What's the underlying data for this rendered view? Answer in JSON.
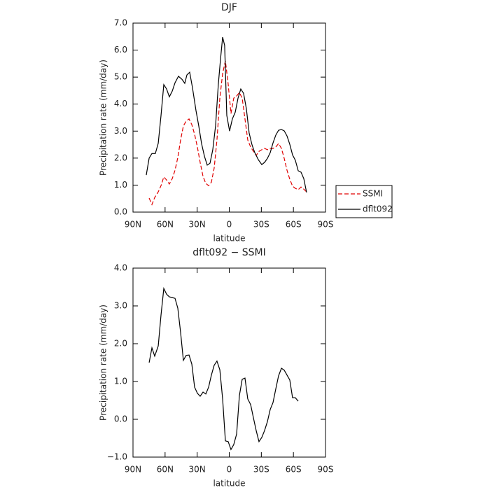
{
  "chart_data": [
    {
      "type": "line",
      "title": "DJF",
      "x_label": "latitude",
      "y_label": "Precipitation rate  (mm/day)",
      "xlim": [
        90,
        -90
      ],
      "ylim": [
        0,
        7
      ],
      "xticks": [
        {
          "value": 90,
          "label": "90N"
        },
        {
          "value": 60,
          "label": "60N"
        },
        {
          "value": 30,
          "label": "30N"
        },
        0,
        {
          "value": -30,
          "label": "30S"
        },
        {
          "value": -60,
          "label": "60S"
        },
        {
          "value": -90,
          "label": "90S"
        }
      ],
      "yticks": [
        {
          "value": 0,
          "label": "0.0"
        },
        {
          "value": 1,
          "label": "1.0"
        },
        {
          "value": 2,
          "label": "2.0"
        },
        {
          "value": 3,
          "label": "3.0"
        },
        {
          "value": 4,
          "label": "4.0"
        },
        {
          "value": 5,
          "label": "5.0"
        },
        {
          "value": 6,
          "label": "6.0"
        },
        {
          "value": 7,
          "label": "7.0"
        }
      ],
      "legend": "right",
      "series": [
        {
          "name": "SSMI",
          "color": "#e00000",
          "linestyle": "dashed",
          "x": [
            74.9,
            72.3,
            69.7,
            66.4,
            63.8,
            61.2,
            58.6,
            56.0,
            53.3,
            50.7,
            48.1,
            45.5,
            42.9,
            40.3,
            37.6,
            35.0,
            32.4,
            29.8,
            27.2,
            24.5,
            21.9,
            19.3,
            16.7,
            14.1,
            11.5,
            8.8,
            6.2,
            3.6,
            1.0,
            -1.6,
            -4.2,
            -6.9,
            -9.5,
            -12.1,
            -14.7,
            -17.3,
            -20.0,
            -22.6,
            -25.2,
            -27.8,
            -30.4,
            -33.0,
            -35.7,
            -38.3,
            -40.9,
            -43.5,
            -46.1,
            -48.8,
            -51.4,
            -54.0,
            -56.6,
            -59.2,
            -61.8,
            -64.5,
            -67.1,
            -69.7,
            -72.3
          ],
          "values": [
            0.52,
            0.28,
            0.54,
            0.75,
            0.98,
            1.3,
            1.19,
            1.04,
            1.24,
            1.55,
            2.02,
            2.67,
            3.19,
            3.37,
            3.45,
            3.24,
            2.88,
            2.41,
            1.84,
            1.32,
            1.06,
            0.98,
            1.11,
            1.63,
            2.67,
            4.22,
            5.13,
            5.6,
            4.74,
            3.65,
            4.22,
            4.3,
            4.43,
            4.22,
            3.45,
            2.67,
            2.41,
            2.25,
            2.1,
            2.25,
            2.31,
            2.36,
            2.31,
            2.36,
            2.36,
            2.41,
            2.54,
            2.36,
            1.99,
            1.55,
            1.22,
            0.96,
            0.88,
            0.83,
            0.93,
            0.85,
            0.75
          ]
        },
        {
          "name": "dflt092",
          "color": "#000000",
          "linestyle": "solid",
          "x": [
            77.6,
            74.9,
            72.3,
            69.1,
            66.4,
            63.8,
            61.2,
            58.6,
            56.0,
            53.3,
            50.7,
            47.5,
            44.2,
            41.6,
            39.6,
            37.0,
            34.4,
            31.1,
            28.5,
            25.9,
            23.2,
            20.6,
            18.0,
            15.4,
            12.8,
            10.2,
            8.2,
            6.2,
            4.3,
            2.3,
            -0.3,
            -2.9,
            -5.6,
            -8.2,
            -10.8,
            -13.4,
            -16.0,
            -18.6,
            -21.3,
            -23.9,
            -27.2,
            -30.4,
            -33.0,
            -35.7,
            -38.3,
            -40.9,
            -43.5,
            -46.1,
            -48.8,
            -51.4,
            -54.0,
            -56.6,
            -59.2,
            -61.8,
            -64.5,
            -67.1,
            -69.7,
            -72.3
          ],
          "values": [
            1.37,
            2.0,
            2.17,
            2.17,
            2.55,
            3.58,
            4.72,
            4.56,
            4.27,
            4.48,
            4.79,
            5.03,
            4.92,
            4.77,
            5.08,
            5.18,
            4.61,
            3.76,
            3.19,
            2.54,
            2.07,
            1.74,
            1.81,
            2.31,
            3.19,
            4.74,
            5.65,
            6.48,
            6.17,
            3.58,
            3.0,
            3.45,
            3.7,
            4.22,
            4.56,
            4.4,
            3.83,
            2.93,
            2.49,
            2.2,
            1.94,
            1.76,
            1.84,
            1.99,
            2.2,
            2.56,
            2.85,
            3.03,
            3.06,
            3.01,
            2.82,
            2.51,
            2.12,
            1.92,
            1.53,
            1.48,
            1.24,
            0.73
          ]
        }
      ]
    },
    {
      "type": "line",
      "title": "dflt092 − SSMI",
      "x_label": "latitude",
      "y_label": "Precipitation rate  (mm/day)",
      "xlim": [
        90,
        -90
      ],
      "ylim": [
        -1,
        4
      ],
      "xticks": [
        {
          "value": 90,
          "label": "90N"
        },
        {
          "value": 60,
          "label": "60N"
        },
        {
          "value": 30,
          "label": "30N"
        },
        0,
        {
          "value": -30,
          "label": "30S"
        },
        {
          "value": -60,
          "label": "60S"
        },
        {
          "value": -90,
          "label": "90S"
        }
      ],
      "yticks": [
        {
          "value": -1,
          "label": "−1.0"
        },
        {
          "value": 0,
          "label": "0.0"
        },
        {
          "value": 1,
          "label": "1.0"
        },
        {
          "value": 2,
          "label": "2.0"
        },
        {
          "value": 3,
          "label": "3.0"
        },
        {
          "value": 4,
          "label": "4.0"
        }
      ],
      "series": [
        {
          "color": "#000000",
          "linestyle": "solid",
          "x": [
            74.9,
            72.3,
            69.7,
            66.4,
            63.8,
            61.2,
            58.6,
            56.0,
            53.3,
            50.7,
            48.1,
            45.5,
            42.9,
            40.3,
            37.6,
            35.0,
            32.4,
            29.8,
            27.2,
            24.5,
            21.9,
            19.3,
            16.7,
            14.1,
            11.5,
            8.8,
            6.2,
            3.6,
            1.0,
            -1.6,
            -4.2,
            -6.9,
            -9.5,
            -12.1,
            -14.7,
            -17.3,
            -20.0,
            -22.6,
            -25.2,
            -27.8,
            -30.4,
            -33.0,
            -35.7,
            -38.3,
            -40.9,
            -43.5,
            -46.1,
            -48.8,
            -51.4,
            -54.0,
            -56.6,
            -59.2,
            -61.8,
            -64.5
          ],
          "values": [
            1.5,
            1.89,
            1.67,
            1.94,
            2.76,
            3.46,
            3.31,
            3.24,
            3.22,
            3.2,
            2.94,
            2.3,
            1.56,
            1.69,
            1.7,
            1.46,
            0.85,
            0.69,
            0.61,
            0.72,
            0.67,
            0.85,
            1.17,
            1.43,
            1.54,
            1.31,
            0.54,
            -0.57,
            -0.59,
            -0.8,
            -0.67,
            -0.39,
            0.63,
            1.06,
            1.09,
            0.54,
            0.39,
            0.04,
            -0.3,
            -0.59,
            -0.48,
            -0.3,
            -0.06,
            0.26,
            0.44,
            0.8,
            1.15,
            1.35,
            1.3,
            1.17,
            1.04,
            0.57,
            0.57,
            0.48
          ]
        }
      ]
    }
  ]
}
